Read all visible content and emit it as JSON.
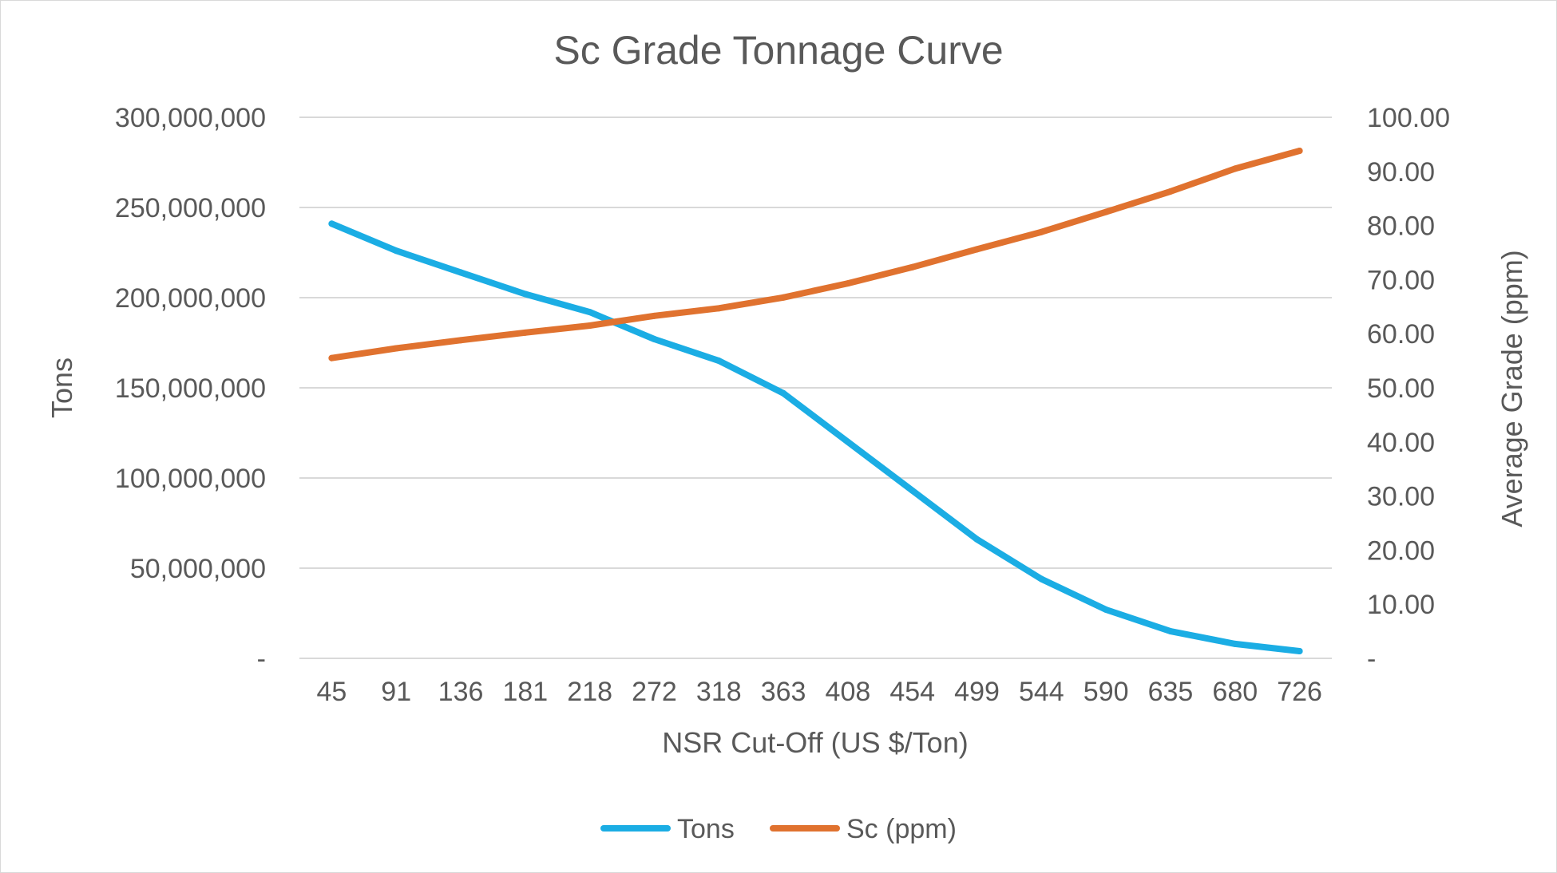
{
  "chart_data": {
    "type": "line",
    "title": "Sc Grade Tonnage Curve",
    "xlabel": "NSR Cut-Off (US $/Ton)",
    "ylabel_left": "Tons",
    "ylabel_right": "Average Grade (ppm)",
    "categories": [
      "45",
      "91",
      "136",
      "181",
      "218",
      "272",
      "318",
      "363",
      "408",
      "454",
      "499",
      "544",
      "590",
      "635",
      "680",
      "726"
    ],
    "y_left": {
      "lim": [
        0,
        300000000
      ],
      "ticks": [
        {
          "value": 300000000,
          "label": "300,000,000"
        },
        {
          "value": 250000000,
          "label": "250,000,000"
        },
        {
          "value": 200000000,
          "label": "200,000,000"
        },
        {
          "value": 150000000,
          "label": "150,000,000"
        },
        {
          "value": 100000000,
          "label": "100,000,000"
        },
        {
          "value": 50000000,
          "label": "50,000,000"
        },
        {
          "value": 0,
          "label": "-"
        }
      ]
    },
    "y_right": {
      "lim": [
        0,
        100
      ],
      "ticks": [
        {
          "value": 100,
          "label": "100.00"
        },
        {
          "value": 90,
          "label": "90.00"
        },
        {
          "value": 80,
          "label": "80.00"
        },
        {
          "value": 70,
          "label": "70.00"
        },
        {
          "value": 60,
          "label": "60.00"
        },
        {
          "value": 50,
          "label": "50.00"
        },
        {
          "value": 40,
          "label": "40.00"
        },
        {
          "value": 30,
          "label": "30.00"
        },
        {
          "value": 20,
          "label": "20.00"
        },
        {
          "value": 10,
          "label": "10.00"
        },
        {
          "value": 0,
          "label": "-"
        }
      ]
    },
    "grid": true,
    "legend_position": "bottom",
    "series": [
      {
        "name": "Tons",
        "axis": "left",
        "color": "#1BADE4",
        "values": [
          241000000,
          226000000,
          214000000,
          202000000,
          192000000,
          177000000,
          165000000,
          147000000,
          120000000,
          93000000,
          66000000,
          44000000,
          27000000,
          15000000,
          8000000,
          4000000
        ]
      },
      {
        "name": "Sc (ppm)",
        "axis": "right",
        "color": "#E0722F",
        "values": [
          55.5,
          57.3,
          58.8,
          60.2,
          61.5,
          63.3,
          64.7,
          66.7,
          69.3,
          72.3,
          75.6,
          78.8,
          82.5,
          86.3,
          90.5,
          93.8
        ]
      }
    ]
  }
}
